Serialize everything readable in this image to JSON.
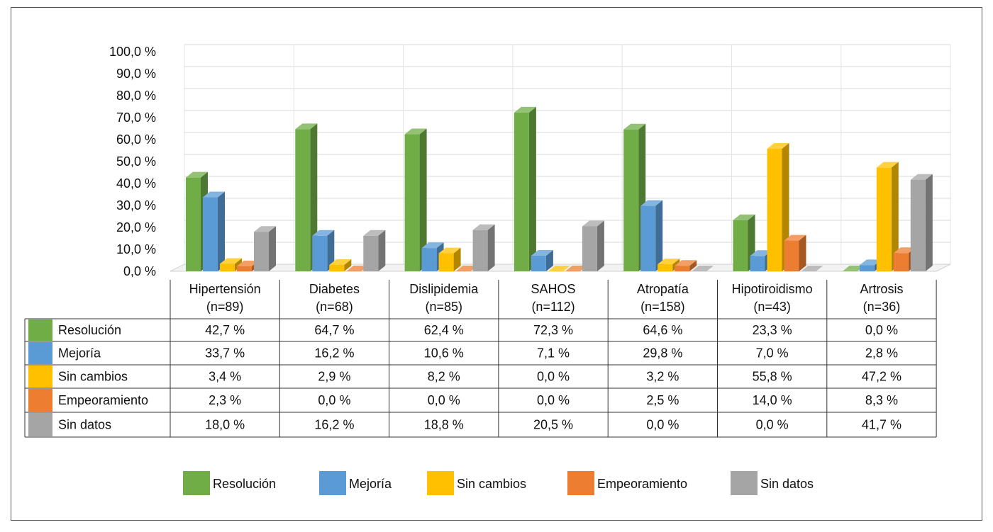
{
  "chart_data": {
    "type": "bar",
    "ylim": [
      0,
      100
    ],
    "yticks": [
      "0,0 %",
      "10,0 %",
      "20,0 %",
      "30,0 %",
      "40,0 %",
      "50,0 %",
      "60,0 %",
      "70,0 %",
      "80,0 %",
      "90,0 %",
      "100,0 %"
    ],
    "categories": [
      {
        "name": "Hipertensión",
        "n": "(n=89)"
      },
      {
        "name": "Diabetes",
        "n": "(n=68)"
      },
      {
        "name": "Dislipidemia",
        "n": "(n=85)"
      },
      {
        "name": "SAHOS",
        "n": "(n=112)"
      },
      {
        "name": "Atropatía",
        "n": "(n=158)"
      },
      {
        "name": "Hipotiroidismo",
        "n": "(n=43)"
      },
      {
        "name": "Artrosis",
        "n": "(n=36)"
      }
    ],
    "series": [
      {
        "name": "Resolución",
        "color": "#70ad47",
        "values": [
          42.7,
          64.7,
          62.4,
          72.3,
          64.6,
          23.3,
          0.0
        ],
        "labels": [
          "42,7 %",
          "64,7 %",
          "62,4 %",
          "72,3 %",
          "64,6 %",
          "23,3 %",
          "0,0 %"
        ]
      },
      {
        "name": "Mejoría",
        "color": "#5b9bd5",
        "values": [
          33.7,
          16.2,
          10.6,
          7.1,
          29.8,
          7.0,
          2.8
        ],
        "labels": [
          "33,7 %",
          "16,2 %",
          "10,6 %",
          "7,1 %",
          "29,8 %",
          "7,0 %",
          "2,8 %"
        ]
      },
      {
        "name": "Sin cambios",
        "color": "#ffc000",
        "values": [
          3.4,
          2.9,
          8.2,
          0.0,
          3.2,
          55.8,
          47.2
        ],
        "labels": [
          "3,4 %",
          "2,9 %",
          "8,2 %",
          "0,0 %",
          "3,2 %",
          "55,8 %",
          "47,2 %"
        ]
      },
      {
        "name": "Empeoramiento",
        "color": "#ed7d31",
        "values": [
          2.3,
          0.0,
          0.0,
          0.0,
          2.5,
          14.0,
          8.3
        ],
        "labels": [
          "2,3 %",
          "0,0 %",
          "0,0 %",
          "0,0 %",
          "2,5 %",
          "14,0 %",
          "8,3 %"
        ]
      },
      {
        "name": "Sin datos",
        "color": "#a5a5a5",
        "values": [
          18.0,
          16.2,
          18.8,
          20.5,
          0.0,
          0.0,
          41.7
        ],
        "labels": [
          "18,0 %",
          "16,2 %",
          "18,8 %",
          "20,5 %",
          "0,0 %",
          "0,0 %",
          "41,7 %"
        ]
      }
    ],
    "grid": true,
    "legend_placement": "bottom",
    "data_table": true
  }
}
